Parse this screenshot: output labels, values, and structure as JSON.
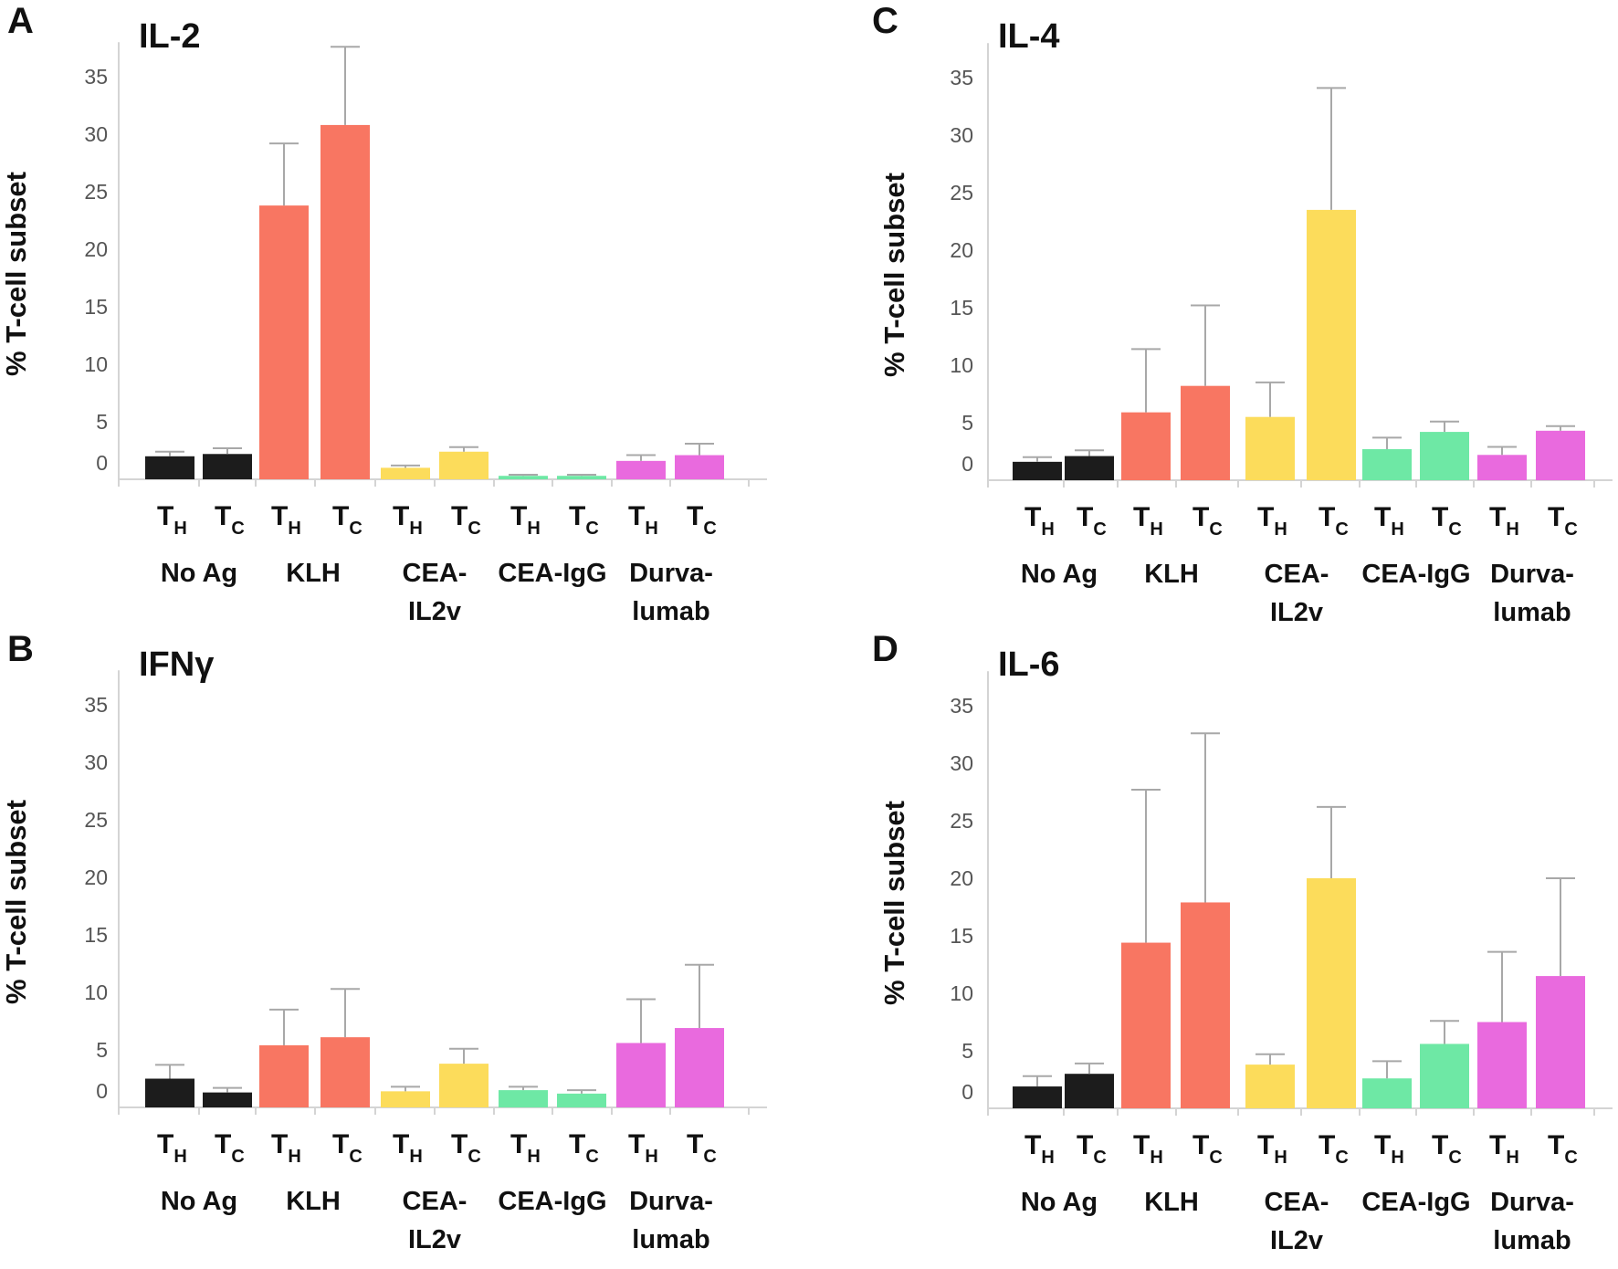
{
  "figure": {
    "ylabel": "% T-cell subset",
    "subset_labels": [
      {
        "main": "T",
        "sub": "H"
      },
      {
        "main": "T",
        "sub": "C"
      }
    ],
    "groups": [
      {
        "lines": [
          "No Ag"
        ],
        "color": "#1c1c1c"
      },
      {
        "lines": [
          "KLH"
        ],
        "color": "#f87662"
      },
      {
        "lines": [
          "CEA-",
          "IL2v"
        ],
        "color": "#fcdc5b"
      },
      {
        "lines": [
          "CEA-IgG"
        ],
        "color": "#6ee8a5"
      },
      {
        "lines": [
          "Durva-",
          "lumab"
        ],
        "color": "#e96ade"
      }
    ],
    "yticks": [
      0,
      5,
      10,
      15,
      20,
      25,
      30,
      35
    ]
  },
  "chart_data": [
    {
      "type": "bar",
      "panel": "A",
      "title": "IL-2",
      "ylabel": "% T-cell subset",
      "ylim": [
        0,
        38
      ],
      "categories": [
        "TH No Ag",
        "TC No Ag",
        "TH KLH",
        "TC KLH",
        "TH CEA-IL2v",
        "TC CEA-IL2v",
        "TH CEA-IgG",
        "TC CEA-IgG",
        "TH Durvalumab",
        "TC Durvalumab"
      ],
      "values": [
        2.0,
        2.2,
        23.8,
        30.8,
        1.0,
        2.4,
        0.3,
        0.3,
        1.6,
        2.1
      ],
      "errors": [
        0.4,
        0.5,
        5.4,
        6.8,
        0.2,
        0.4,
        0.1,
        0.1,
        0.5,
        1.0
      ]
    },
    {
      "type": "bar",
      "panel": "B",
      "title": "IFNγ",
      "ylabel": "% T-cell subset",
      "ylim": [
        0,
        38
      ],
      "categories": [
        "TH No Ag",
        "TC No Ag",
        "TH KLH",
        "TC KLH",
        "TH CEA-IL2v",
        "TC CEA-IL2v",
        "TH CEA-IgG",
        "TC CEA-IgG",
        "TH Durvalumab",
        "TC Durvalumab"
      ],
      "values": [
        2.5,
        1.3,
        5.4,
        6.1,
        1.4,
        3.8,
        1.5,
        1.2,
        5.6,
        6.9
      ],
      "errors": [
        1.2,
        0.4,
        3.1,
        4.2,
        0.4,
        1.3,
        0.3,
        0.3,
        3.8,
        5.5
      ]
    },
    {
      "type": "bar",
      "panel": "C",
      "title": "IL-4",
      "ylabel": "% T-cell subset",
      "ylim": [
        0,
        38
      ],
      "categories": [
        "TH No Ag",
        "TC No Ag",
        "TH KLH",
        "TC KLH",
        "TH CEA-IL2v",
        "TC CEA-IL2v",
        "TH CEA-IgG",
        "TC CEA-IgG",
        "TH Durvalumab",
        "TC Durvalumab"
      ],
      "values": [
        1.6,
        2.1,
        5.9,
        8.2,
        5.5,
        23.5,
        2.7,
        4.2,
        2.2,
        4.3
      ],
      "errors": [
        0.4,
        0.5,
        5.5,
        7.0,
        3.0,
        10.6,
        1.0,
        0.9,
        0.7,
        0.4
      ]
    },
    {
      "type": "bar",
      "panel": "D",
      "title": "IL-6",
      "ylabel": "% T-cell subset",
      "ylim": [
        0,
        38
      ],
      "categories": [
        "TH No Ag",
        "TC No Ag",
        "TH KLH",
        "TC KLH",
        "TH CEA-IL2v",
        "TC CEA-IL2v",
        "TH CEA-IgG",
        "TC CEA-IgG",
        "TH Durvalumab",
        "TC Durvalumab"
      ],
      "values": [
        1.9,
        3.0,
        14.4,
        17.9,
        3.8,
        20.0,
        2.6,
        5.6,
        7.5,
        11.5
      ],
      "errors": [
        0.9,
        0.9,
        13.3,
        14.7,
        0.9,
        6.2,
        1.5,
        2.0,
        6.1,
        8.5
      ]
    }
  ]
}
